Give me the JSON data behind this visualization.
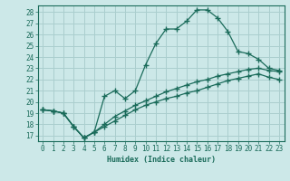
{
  "xlabel": "Humidex (Indice chaleur)",
  "background_color": "#cce8e8",
  "grid_color": "#aacece",
  "line_color": "#1a6b5a",
  "xlim": [
    -0.5,
    23.5
  ],
  "ylim": [
    16.5,
    28.6
  ],
  "xticks": [
    0,
    1,
    2,
    3,
    4,
    5,
    6,
    7,
    8,
    9,
    10,
    11,
    12,
    13,
    14,
    15,
    16,
    17,
    18,
    19,
    20,
    21,
    22,
    23
  ],
  "yticks": [
    17,
    18,
    19,
    20,
    21,
    22,
    23,
    24,
    25,
    26,
    27,
    28
  ],
  "curve1_x": [
    0,
    1,
    2,
    3,
    4,
    5,
    6,
    7,
    8,
    9,
    10,
    11,
    12,
    13,
    14,
    15,
    16,
    17,
    18,
    19,
    20,
    21,
    22,
    23
  ],
  "curve1_y": [
    19.3,
    19.2,
    19.0,
    17.8,
    16.8,
    17.3,
    20.5,
    21.0,
    20.3,
    21.0,
    23.3,
    25.2,
    26.5,
    26.5,
    27.2,
    28.2,
    28.2,
    27.5,
    26.3,
    24.5,
    24.3,
    23.8,
    23.0,
    22.8
  ],
  "curve2_x": [
    0,
    1,
    2,
    3,
    4,
    5,
    6,
    7,
    8,
    9,
    10,
    11,
    12,
    13,
    14,
    15,
    16,
    17,
    18,
    19,
    20,
    21,
    22,
    23
  ],
  "curve2_y": [
    19.3,
    19.2,
    19.0,
    17.8,
    16.8,
    17.3,
    18.0,
    18.7,
    19.2,
    19.7,
    20.1,
    20.5,
    20.9,
    21.2,
    21.5,
    21.8,
    22.0,
    22.3,
    22.5,
    22.7,
    22.9,
    23.0,
    22.8,
    22.7
  ],
  "curve3_x": [
    0,
    1,
    2,
    3,
    4,
    5,
    6,
    7,
    8,
    9,
    10,
    11,
    12,
    13,
    14,
    15,
    16,
    17,
    18,
    19,
    20,
    21,
    22,
    23
  ],
  "curve3_y": [
    19.3,
    19.2,
    19.0,
    17.8,
    16.8,
    17.3,
    17.8,
    18.3,
    18.8,
    19.3,
    19.7,
    20.0,
    20.3,
    20.5,
    20.8,
    21.0,
    21.3,
    21.6,
    21.9,
    22.1,
    22.3,
    22.5,
    22.2,
    22.0
  ]
}
